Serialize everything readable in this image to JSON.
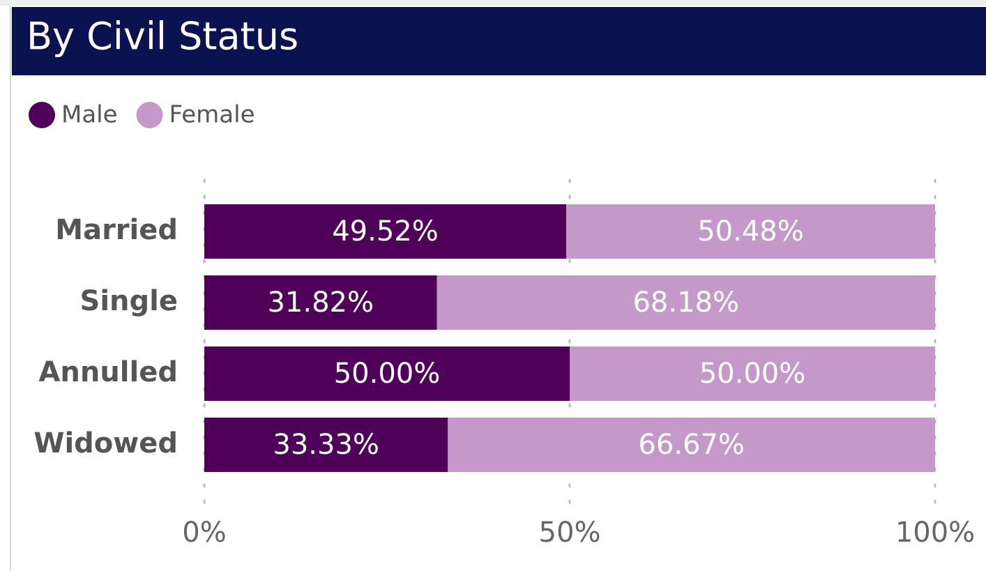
{
  "chart_data": {
    "type": "stacked_bar_horizontal",
    "title": "By Civil Status",
    "categories": [
      "Married",
      "Single",
      "Annulled",
      "Widowed"
    ],
    "series": [
      {
        "name": "Male",
        "color": "#4f0058",
        "values": [
          49.52,
          31.82,
          50.0,
          33.33
        ],
        "value_labels": [
          "49.52%",
          "31.82%",
          "50.00%",
          "33.33%"
        ]
      },
      {
        "name": "Female",
        "color": "#c499c9",
        "values": [
          50.48,
          68.18,
          50.0,
          66.67
        ],
        "value_labels": [
          "50.48%",
          "68.18%",
          "50.00%",
          "66.67%"
        ]
      }
    ],
    "xlim": [
      0,
      100
    ],
    "xticks": [
      {
        "value": 0,
        "label": "0%"
      },
      {
        "value": 50,
        "label": "50%"
      },
      {
        "value": 100,
        "label": "100%"
      }
    ],
    "grid": true,
    "legend": "top-left"
  }
}
